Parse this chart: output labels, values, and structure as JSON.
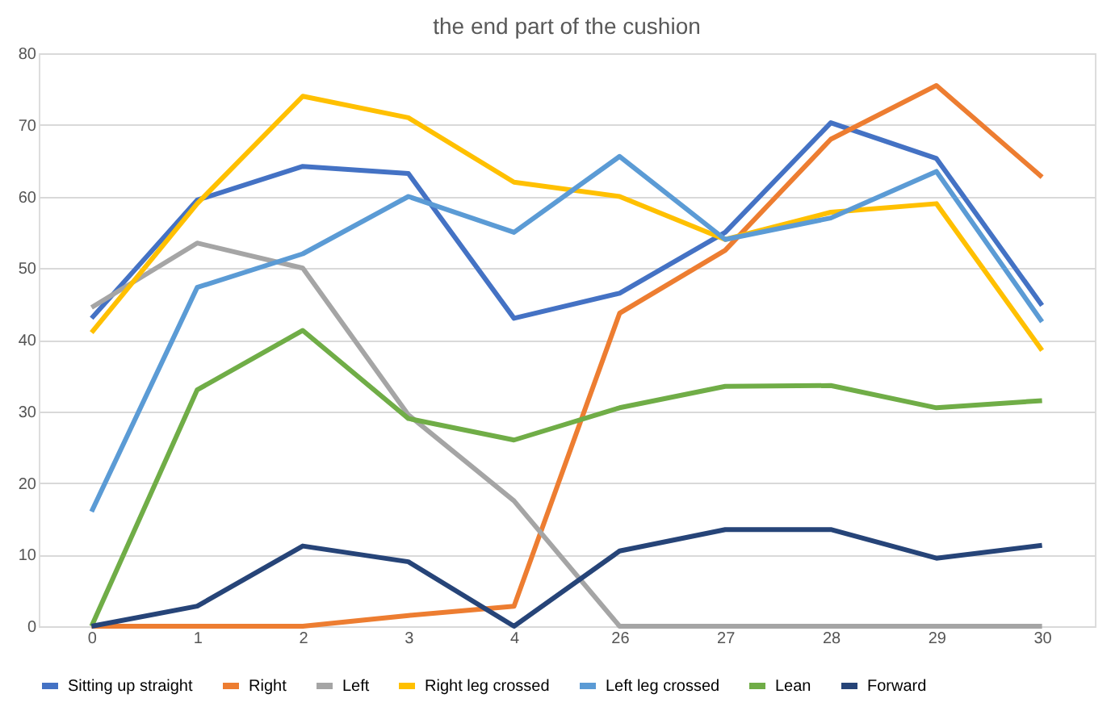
{
  "chart_data": {
    "type": "line",
    "title": "the end part of the cushion",
    "categories": [
      "0",
      "1",
      "2",
      "3",
      "4",
      "26",
      "27",
      "28",
      "29",
      "30"
    ],
    "ylim": [
      0,
      80
    ],
    "yticks": [
      0,
      10,
      20,
      30,
      40,
      50,
      60,
      70,
      80
    ],
    "grid": "y",
    "legend": "bottom",
    "marker": "none",
    "line_style": "solid",
    "series": [
      {
        "name": "Sitting up straight",
        "color": "#4472c4",
        "values": [
          43,
          59.5,
          64.2,
          63.2,
          43,
          46.5,
          55,
          70.3,
          65.3,
          44.8
        ]
      },
      {
        "name": "Right",
        "color": "#ed7d31",
        "values": [
          0,
          0,
          0,
          1.5,
          2.8,
          43.7,
          52.5,
          68,
          75.5,
          62.7
        ]
      },
      {
        "name": "Left",
        "color": "#a5a5a5",
        "values": [
          44.5,
          53.5,
          50,
          29.5,
          17.5,
          0,
          0,
          0,
          0,
          0
        ]
      },
      {
        "name": "Right leg crossed",
        "color": "#ffc000",
        "values": [
          41,
          59,
          74,
          71,
          62,
          60,
          54,
          57.8,
          59,
          38.5
        ]
      },
      {
        "name": "Left leg crossed",
        "color": "#5b9bd5",
        "values": [
          16,
          47.3,
          52,
          60,
          55,
          65.6,
          54,
          57,
          63.5,
          42.5
        ]
      },
      {
        "name": "Lean",
        "color": "#70ad47",
        "values": [
          0,
          33,
          41.3,
          29,
          26,
          30.5,
          33.5,
          33.6,
          30.5,
          31.5
        ]
      },
      {
        "name": "Forward",
        "color": "#264478",
        "values": [
          0,
          2.8,
          11.2,
          9,
          0,
          10.5,
          13.5,
          13.5,
          9.5,
          11.3
        ]
      }
    ]
  }
}
